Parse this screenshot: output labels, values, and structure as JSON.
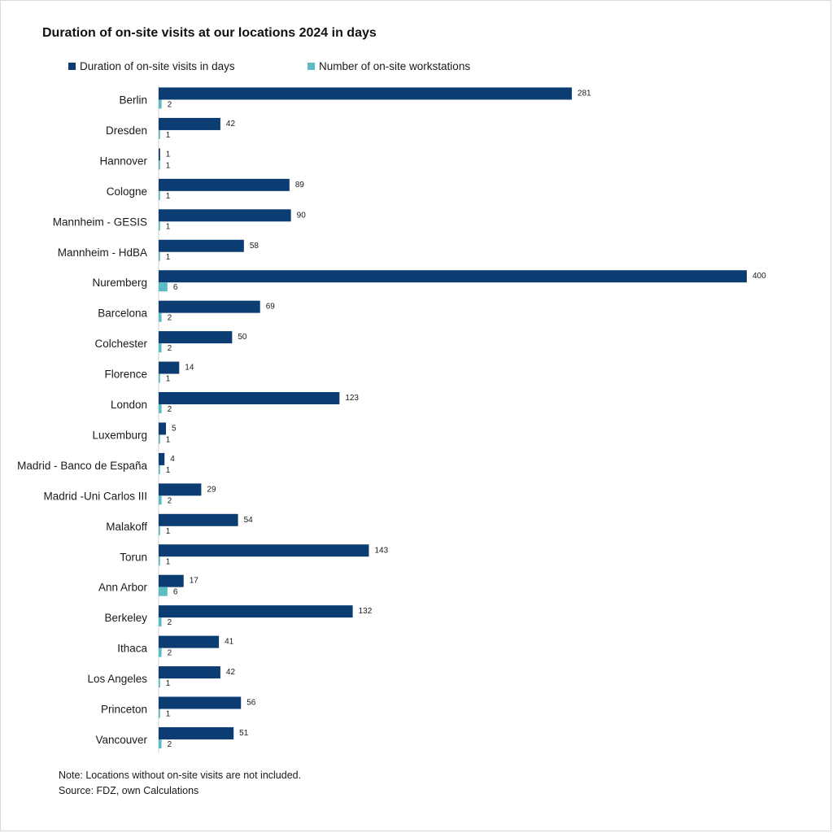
{
  "chart_data": {
    "type": "bar",
    "orientation": "horizontal",
    "title": "Duration of on-site visits at our locations 2024 in days",
    "xlabel": "",
    "ylabel": "",
    "legend_position": "top",
    "grid": false,
    "xlim": [
      0,
      400
    ],
    "categories": [
      "Berlin",
      "Dresden",
      "Hannover",
      "Cologne",
      "Mannheim - GESIS",
      "Mannheim - HdBA",
      "Nuremberg",
      "Barcelona",
      "Colchester",
      "Florence",
      "London",
      "Luxemburg",
      "Madrid - Banco de España",
      "Madrid -Uni Carlos III",
      "Malakoff",
      "Torun",
      "Ann Arbor",
      "Berkeley",
      "Ithaca",
      "Los Angeles",
      "Princeton",
      "Vancouver"
    ],
    "series": [
      {
        "name": "Duration of on-site visits in days",
        "color": "#0b3d73",
        "values": [
          281,
          42,
          1,
          89,
          90,
          58,
          400,
          69,
          50,
          14,
          123,
          5,
          4,
          29,
          54,
          143,
          17,
          132,
          41,
          42,
          56,
          51
        ]
      },
      {
        "name": "Number of on-site workstations",
        "color": "#5bbcc4",
        "values": [
          2,
          1,
          1,
          1,
          1,
          1,
          6,
          2,
          2,
          1,
          2,
          1,
          1,
          2,
          1,
          1,
          6,
          2,
          2,
          1,
          1,
          2
        ]
      }
    ]
  },
  "notes": {
    "line1": "Note: Locations without on-site visits are not included.",
    "line2": "Source: FDZ, own Calculations"
  }
}
